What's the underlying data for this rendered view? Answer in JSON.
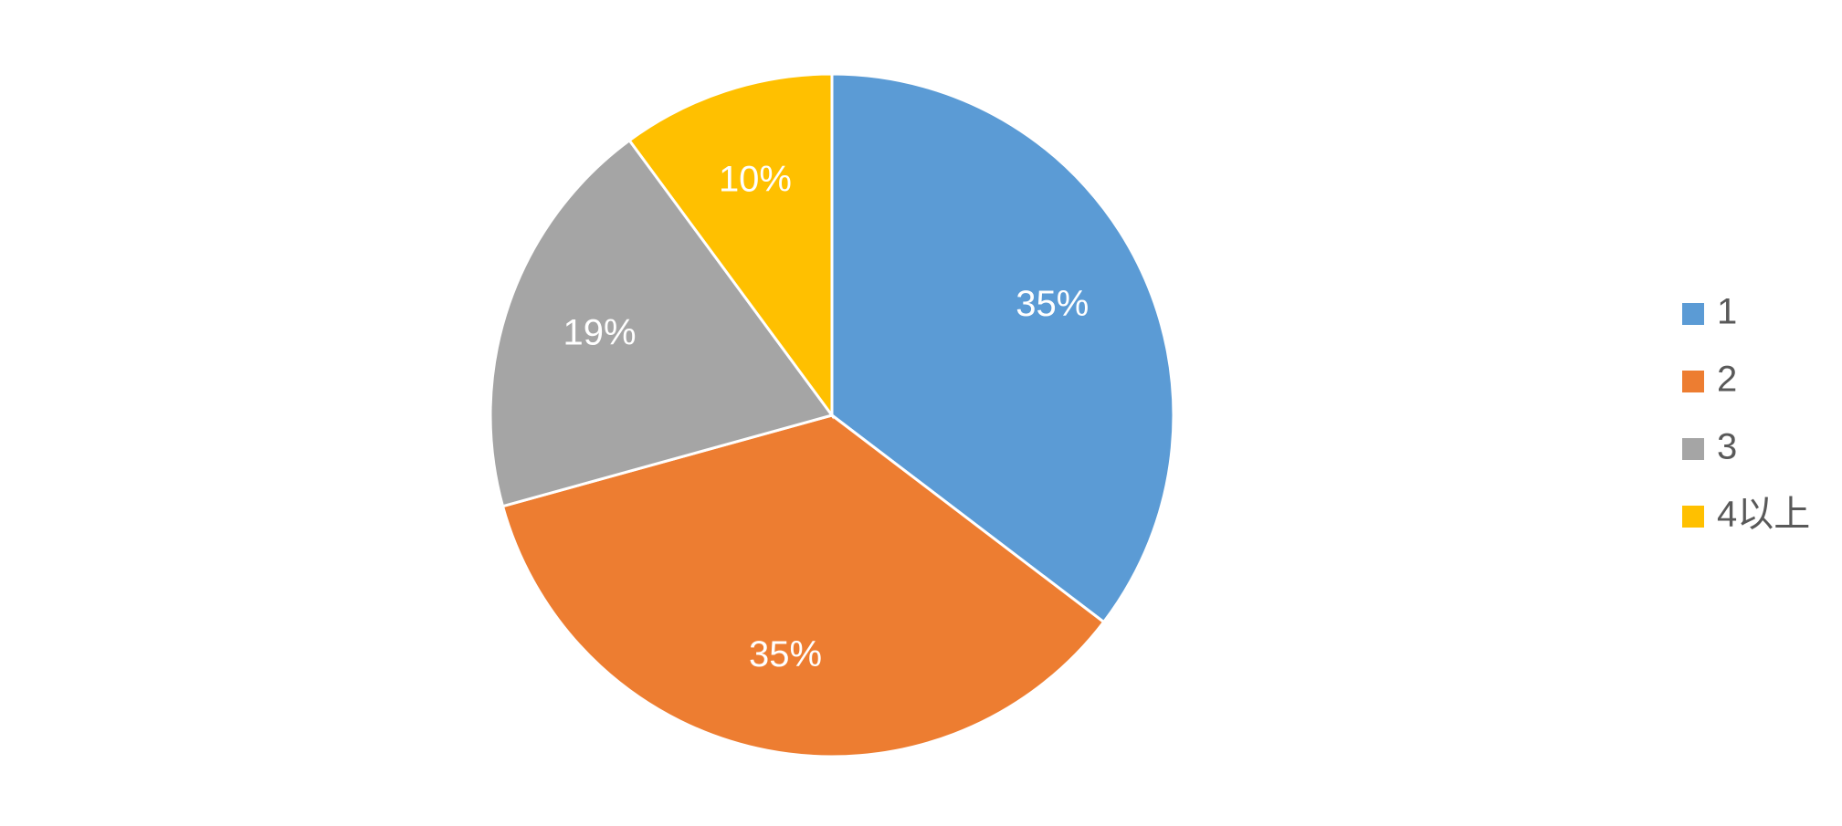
{
  "chart_data": {
    "type": "pie",
    "categories": [
      "1",
      "2",
      "3",
      "4以上"
    ],
    "values": [
      35,
      35,
      19,
      10
    ],
    "value_labels": [
      "35%",
      "35%",
      "19%",
      "10%"
    ],
    "colors": [
      "#5b9bd5",
      "#ed7d31",
      "#a5a5a5",
      "#ffc000"
    ],
    "legend": "right"
  }
}
